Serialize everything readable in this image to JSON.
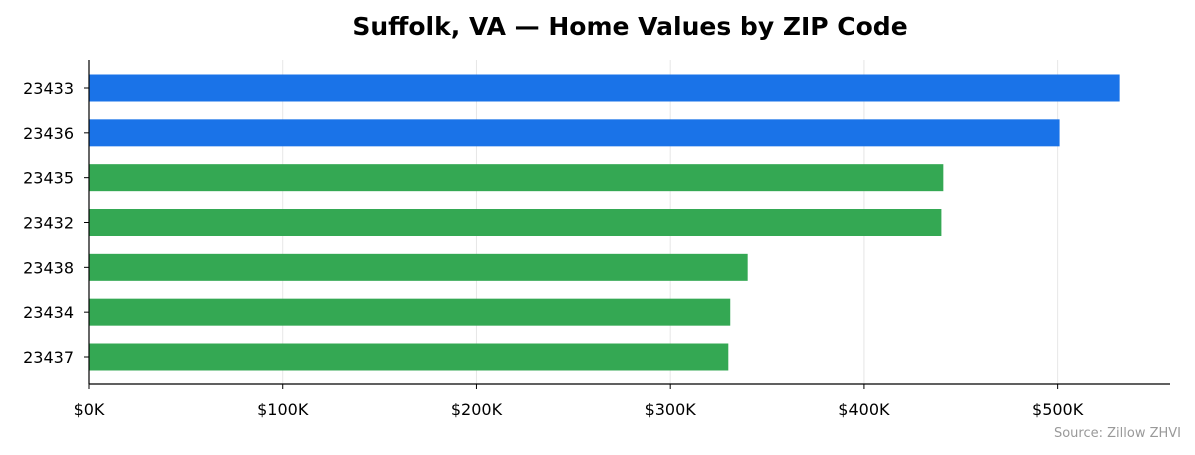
{
  "chart_data": {
    "type": "bar",
    "orientation": "horizontal",
    "title": "Suffolk, VA — Home Values by ZIP Code",
    "xlabel": "",
    "ylabel": "",
    "categories": [
      "23433",
      "23436",
      "23435",
      "23432",
      "23438",
      "23434",
      "23437"
    ],
    "values": [
      532000,
      501000,
      441000,
      440000,
      340000,
      331000,
      330000
    ],
    "bar_colors": [
      "#1a73e8",
      "#1a73e8",
      "#34a853",
      "#34a853",
      "#34a853",
      "#34a853",
      "#34a853"
    ],
    "xlim": [
      0,
      558000
    ],
    "x_ticks": [
      0,
      100000,
      200000,
      300000,
      400000,
      500000
    ],
    "x_tick_labels": [
      "$0K",
      "$100K",
      "$200K",
      "$300K",
      "$400K",
      "$500K"
    ],
    "grid": "vertical",
    "legend": "none"
  },
  "source_note": "Source: Zillow ZHVI"
}
